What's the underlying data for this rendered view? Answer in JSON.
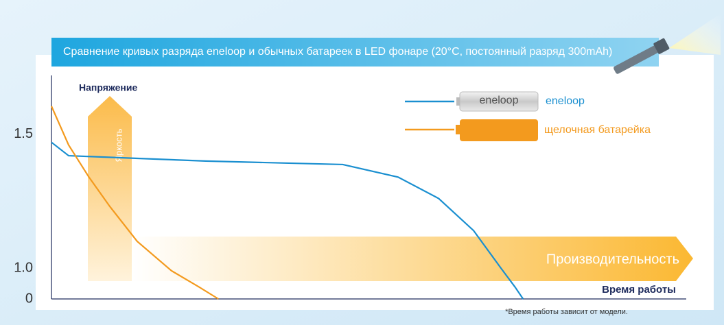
{
  "chart_data": {
    "type": "line",
    "title": "Сравнение кривых разряда eneloop и обычных батареек в LED фонаре (20°C, постоянный разряд 300mAh)",
    "y_label": "Напряжение",
    "brightness_label": "Яркость",
    "performance_label": "Производительность",
    "x_label": "Время работы",
    "footnote": "*Время работы зависит от модели.",
    "icon_label": "eneloop",
    "xlim": [
      0,
      100
    ],
    "ylim": [
      0,
      1.72
    ],
    "y_break": [
      0,
      0.9
    ],
    "yticks": [
      {
        "value": 0,
        "label": "0"
      },
      {
        "value": 1.0,
        "label": "1.0"
      },
      1.5
    ],
    "series": [
      {
        "name": "eneloop",
        "color": "#1a8fd0",
        "x": [
          0,
          2.7,
          24.3,
          45.9,
          54.6,
          61,
          66.5,
          70.8,
          73,
          74.3
        ],
        "values": [
          1.47,
          1.42,
          1.4,
          1.387,
          1.34,
          1.26,
          1.14,
          1.0,
          0.93,
          0
        ]
      },
      {
        "name": "щелочная батарейка",
        "color": "#f39a1e",
        "x": [
          0,
          2.7,
          5.9,
          9.2,
          13.5,
          18.9,
          23.2,
          26.3
        ],
        "values": [
          1.605,
          1.46,
          1.34,
          1.23,
          1.1,
          0.99,
          0.93,
          0
        ]
      }
    ]
  }
}
